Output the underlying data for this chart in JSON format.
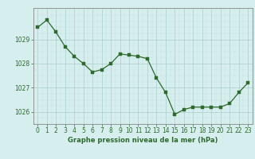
{
  "x": [
    0,
    1,
    2,
    3,
    4,
    5,
    6,
    7,
    8,
    9,
    10,
    11,
    12,
    13,
    14,
    15,
    16,
    17,
    18,
    19,
    20,
    21,
    22,
    23
  ],
  "y": [
    1029.5,
    1029.8,
    1029.3,
    1028.7,
    1028.3,
    1028.0,
    1027.65,
    1027.75,
    1028.0,
    1028.4,
    1028.35,
    1028.3,
    1028.2,
    1027.4,
    1026.8,
    1025.9,
    1026.1,
    1026.2,
    1026.2,
    1026.2,
    1026.2,
    1026.35,
    1026.8,
    1027.2
  ],
  "line_color": "#2d6a2d",
  "marker_color": "#2d6a2d",
  "bg_color": "#d7eeee",
  "grid_color_major": "#aacccc",
  "grid_color_minor": "#c2e0e0",
  "xlabel": "Graphe pression niveau de la mer (hPa)",
  "xlabel_color": "#2d6a2d",
  "tick_color": "#2d6a2d",
  "axis_color": "#888888",
  "ylim_min": 1025.5,
  "ylim_max": 1030.3,
  "yticks": [
    1026,
    1027,
    1028,
    1029
  ],
  "xticks": [
    0,
    1,
    2,
    3,
    4,
    5,
    6,
    7,
    8,
    9,
    10,
    11,
    12,
    13,
    14,
    15,
    16,
    17,
    18,
    19,
    20,
    21,
    22,
    23
  ],
  "tick_fontsize": 5.5,
  "xlabel_fontsize": 6.0,
  "linewidth": 0.9,
  "markersize": 2.2
}
